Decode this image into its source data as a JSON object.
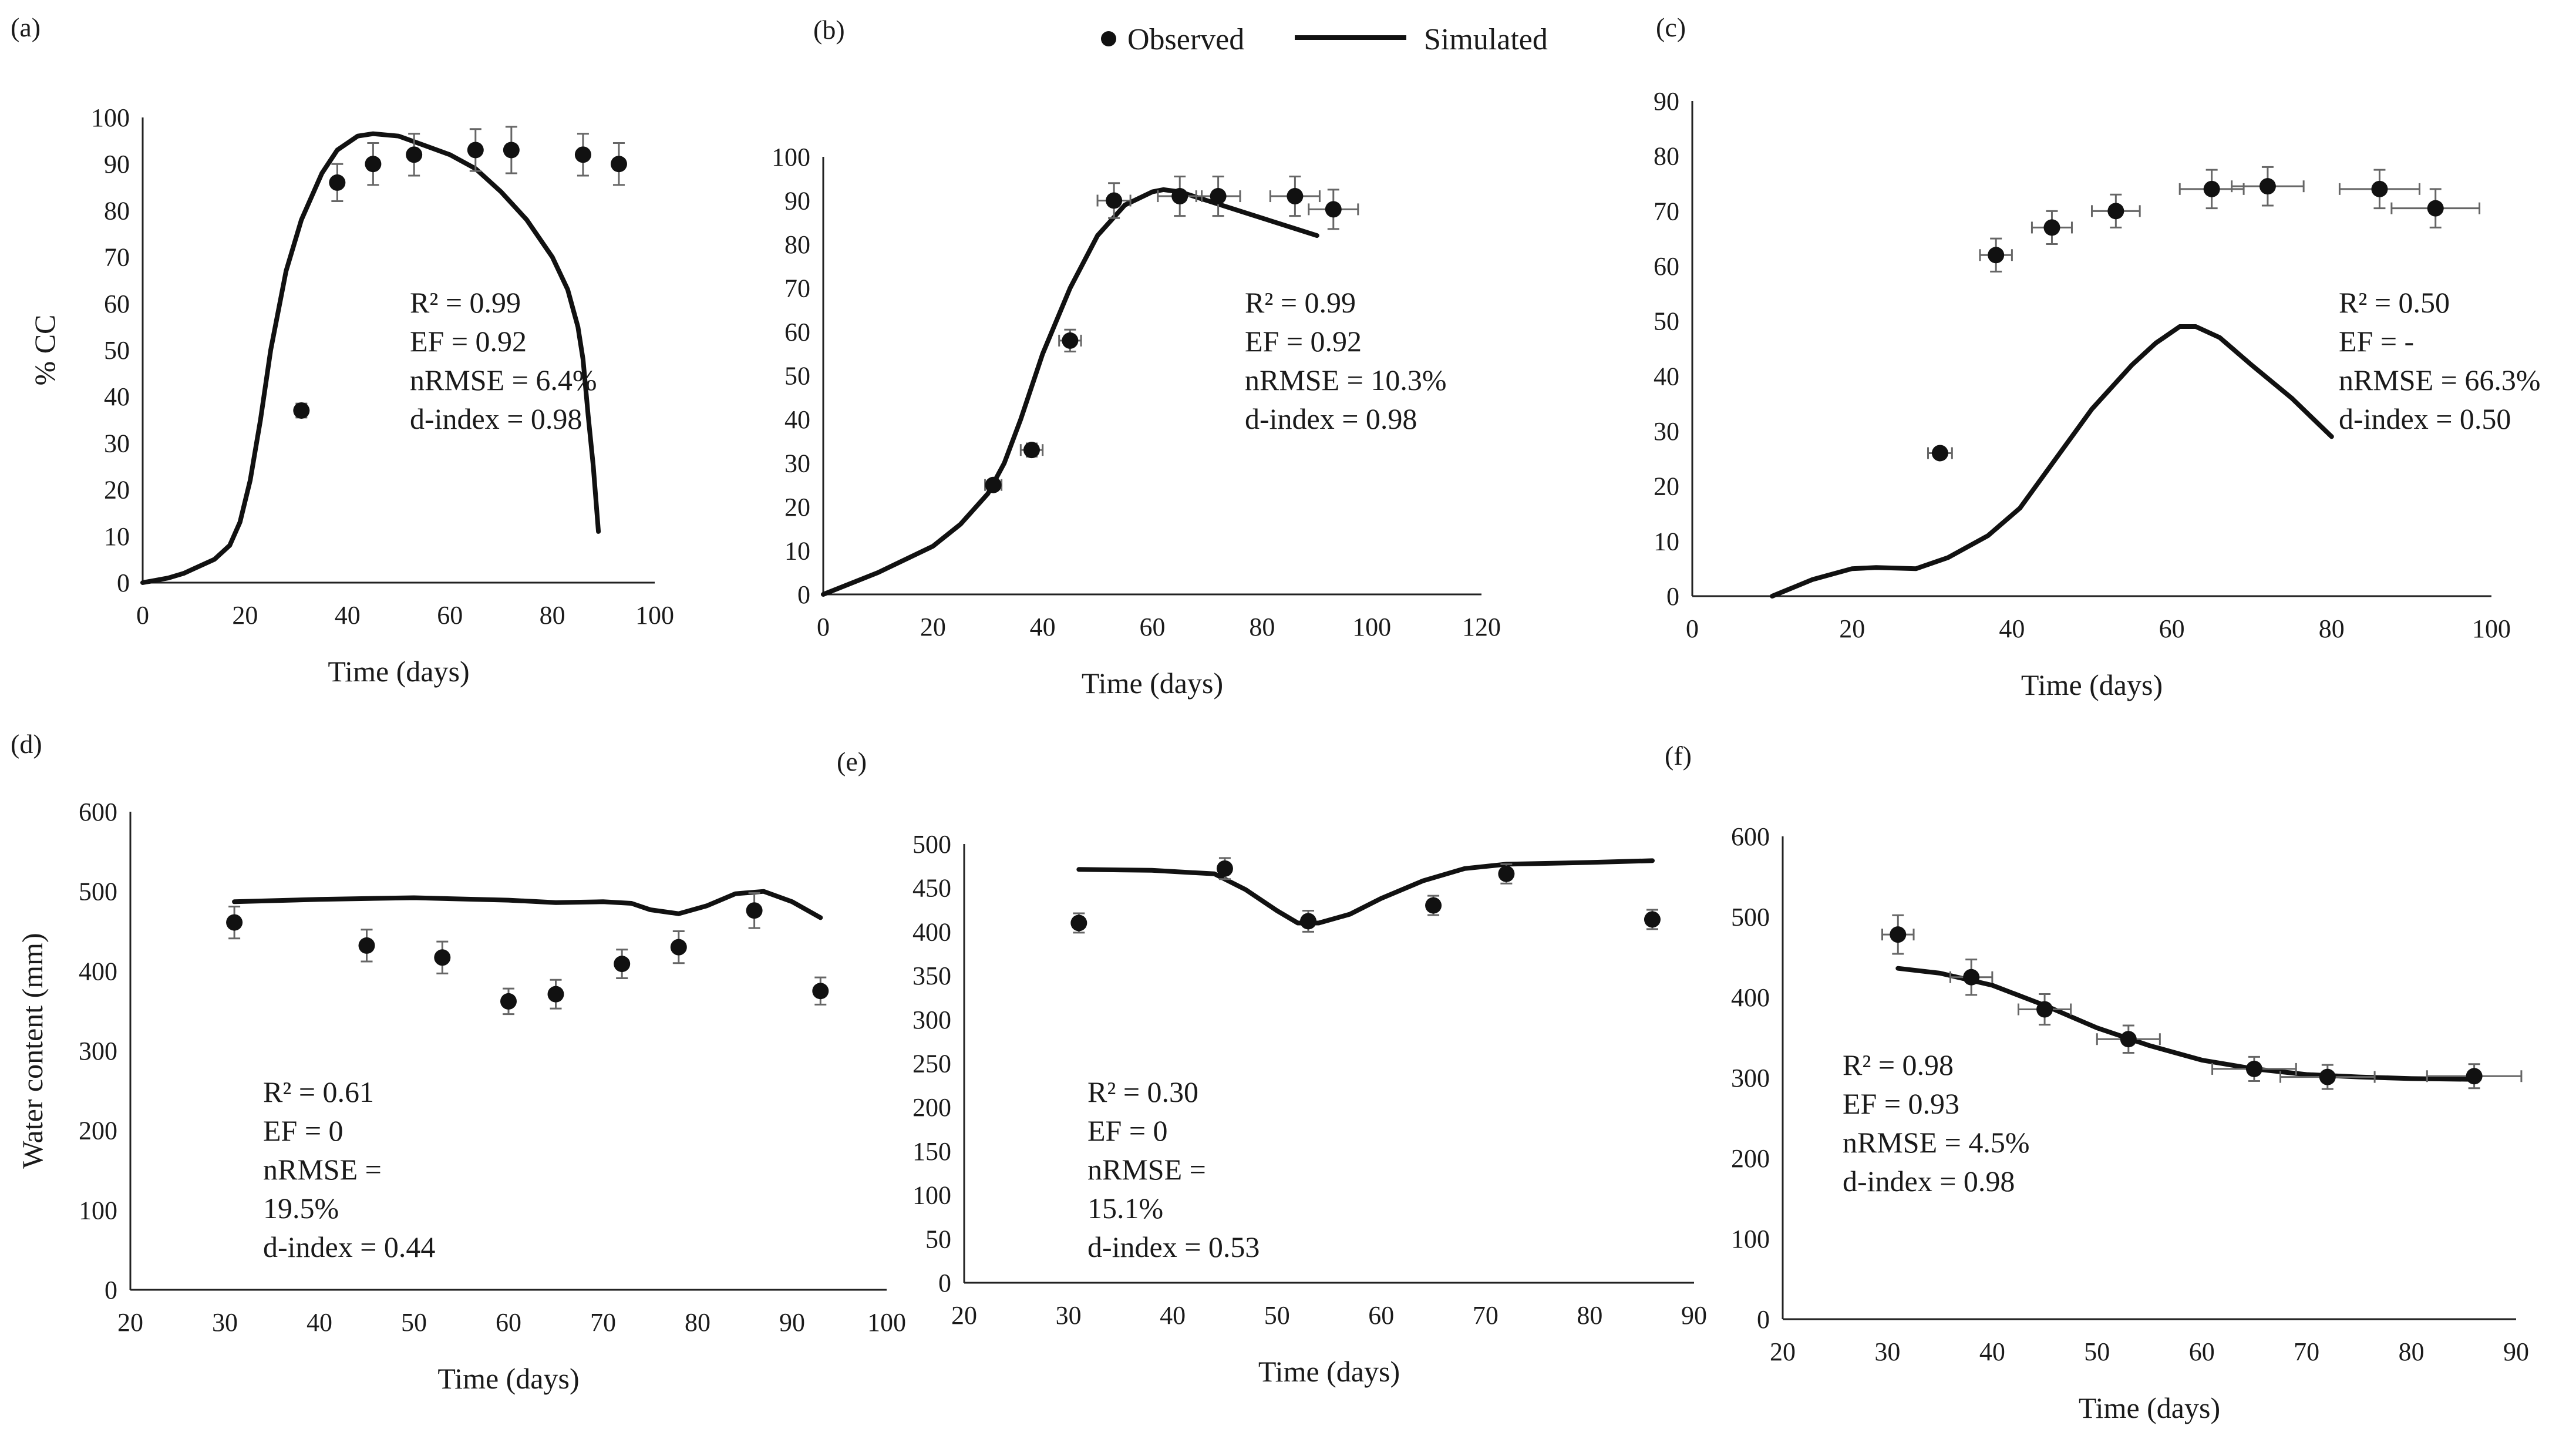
{
  "legend": {
    "observed_label": "Observed",
    "simulated_label": "Simulated"
  },
  "chart_data": [
    {
      "panel": "(a)",
      "type": "line",
      "xlabel": "Time (days)",
      "ylabel": "% CC",
      "xlim": [
        0,
        100
      ],
      "ylim": [
        0,
        100
      ],
      "xticks": [
        0,
        20,
        40,
        60,
        80,
        100
      ],
      "yticks": [
        0,
        10,
        20,
        30,
        40,
        50,
        60,
        70,
        80,
        90,
        100
      ],
      "stats": [
        "R² = 0.99",
        "EF = 0.92",
        "nRMSE = 6.4%",
        "d-index = 0.98"
      ],
      "observed": {
        "x": [
          31,
          38,
          45,
          53,
          65,
          72,
          86,
          93
        ],
        "y": [
          37,
          86,
          90,
          92,
          93,
          93,
          92,
          90
        ],
        "yerr": [
          1.5,
          4,
          4.5,
          4.5,
          4.5,
          5,
          4.5,
          4.5
        ]
      },
      "simulated": {
        "x": [
          0,
          5,
          8,
          10,
          14,
          17,
          19,
          21,
          23,
          25,
          28,
          31,
          35,
          38,
          42,
          45,
          50,
          55,
          60,
          65,
          70,
          75,
          80,
          83,
          85,
          86,
          86.5,
          87,
          88,
          89
        ],
        "y": [
          0,
          1,
          2,
          3,
          5,
          8,
          13,
          22,
          35,
          50,
          67,
          78,
          88,
          93,
          96,
          96.5,
          96,
          94,
          92,
          89,
          84,
          78,
          70,
          63,
          55,
          48,
          42,
          36,
          25,
          11
        ]
      }
    },
    {
      "panel": "(b)",
      "type": "line",
      "xlabel": "Time (days)",
      "ylabel": "",
      "xlim": [
        0,
        120
      ],
      "ylim": [
        0,
        100
      ],
      "xticks": [
        0,
        20,
        40,
        60,
        80,
        100,
        120
      ],
      "yticks": [
        0,
        10,
        20,
        30,
        40,
        50,
        60,
        70,
        80,
        90,
        100
      ],
      "stats": [
        "R² = 0.99",
        "EF = 0.92",
        "nRMSE = 10.3%",
        "d-index = 0.98"
      ],
      "observed": {
        "x": [
          31,
          38,
          45,
          53,
          65,
          72,
          86,
          93
        ],
        "y": [
          25,
          33,
          58,
          90,
          91,
          91,
          91,
          88
        ],
        "yerr": [
          1,
          1.5,
          2.5,
          4,
          4.5,
          4.5,
          4.5,
          4.5
        ],
        "xerr": [
          1.5,
          2,
          2,
          3,
          4,
          4,
          4.5,
          4.5
        ]
      },
      "simulated": {
        "x": [
          0,
          10,
          20,
          25,
          30,
          33,
          36,
          40,
          45,
          50,
          55,
          60,
          62,
          65,
          70,
          75,
          80,
          85,
          90
        ],
        "y": [
          0,
          5,
          11,
          16,
          23,
          30,
          40,
          55,
          70,
          82,
          89,
          92,
          92.5,
          92,
          90,
          88,
          86,
          84,
          82
        ]
      }
    },
    {
      "panel": "(c)",
      "type": "line",
      "xlabel": "Time (days)",
      "ylabel": "",
      "xlim": [
        0,
        100
      ],
      "ylim": [
        0,
        90
      ],
      "xticks": [
        0,
        20,
        40,
        60,
        80,
        100
      ],
      "yticks": [
        0,
        10,
        20,
        30,
        40,
        50,
        60,
        70,
        80,
        90
      ],
      "stats": [
        "R² = 0.50",
        "EF = -",
        "nRMSE = 66.3%",
        "d-index = 0.50"
      ],
      "observed": {
        "x": [
          31,
          38,
          45,
          53,
          65,
          72,
          86,
          93
        ],
        "y": [
          26,
          62,
          67,
          70,
          74,
          74.5,
          74,
          70.5
        ],
        "yerr": [
          0.8,
          3,
          3,
          3,
          3.5,
          3.5,
          3.5,
          3.5
        ],
        "xerr": [
          1.5,
          2,
          2.5,
          3,
          4,
          4.5,
          5,
          5.5
        ]
      },
      "simulated": {
        "x": [
          10,
          15,
          20,
          23,
          28,
          32,
          37,
          41,
          45,
          50,
          55,
          58,
          61,
          63,
          66,
          70,
          75,
          80
        ],
        "y": [
          0,
          3,
          5,
          5.2,
          5,
          7,
          11,
          16,
          24,
          34,
          42,
          46,
          49,
          49,
          47,
          42,
          36,
          29
        ]
      }
    },
    {
      "panel": "(d)",
      "type": "line",
      "xlabel": "Time (days)",
      "ylabel": "Water content (mm)",
      "xlim": [
        20,
        100
      ],
      "ylim": [
        0,
        600
      ],
      "xticks": [
        20,
        30,
        40,
        50,
        60,
        70,
        80,
        90,
        100
      ],
      "yticks": [
        0,
        100,
        200,
        300,
        400,
        500,
        600
      ],
      "stats": [
        "R² = 0.61",
        "EF = 0",
        "nRMSE =",
        "19.5%",
        "d-index = 0.44"
      ],
      "observed": {
        "x": [
          31,
          45,
          53,
          60,
          65,
          72,
          78,
          86,
          93
        ],
        "y": [
          461,
          432,
          417,
          362,
          371,
          409,
          430,
          476,
          375
        ],
        "yerr": [
          20,
          20,
          20,
          16,
          18,
          18,
          20,
          22,
          17
        ]
      },
      "simulated": {
        "x": [
          31,
          40,
          50,
          60,
          65,
          70,
          73,
          75,
          78,
          81,
          84,
          87,
          90,
          93
        ],
        "y": [
          487,
          490,
          492,
          489,
          486,
          487,
          485,
          477,
          472,
          482,
          497,
          500,
          487,
          467
        ]
      }
    },
    {
      "panel": "(e)",
      "type": "line",
      "xlabel": "Time (days)",
      "ylabel": "",
      "xlim": [
        20,
        90
      ],
      "ylim": [
        0,
        500
      ],
      "xticks": [
        20,
        30,
        40,
        50,
        60,
        70,
        80,
        90
      ],
      "yticks": [
        0,
        50,
        100,
        150,
        200,
        250,
        300,
        350,
        400,
        450,
        500
      ],
      "stats": [
        "R² = 0.30",
        "EF = 0",
        "nRMSE =",
        "15.1%",
        "d-index = 0.53"
      ],
      "observed": {
        "x": [
          31,
          45,
          53,
          65,
          72,
          86
        ],
        "y": [
          410,
          472,
          412,
          430,
          466,
          414
        ],
        "yerr": [
          11,
          12,
          12,
          11,
          11,
          11
        ]
      },
      "simulated": {
        "x": [
          31,
          38,
          44,
          47,
          50,
          52,
          54,
          57,
          60,
          64,
          68,
          72,
          80,
          86
        ],
        "y": [
          471,
          470,
          466,
          448,
          424,
          410,
          410,
          420,
          438,
          458,
          472,
          477,
          479,
          481
        ]
      }
    },
    {
      "panel": "(f)",
      "type": "line",
      "xlabel": "Time (days)",
      "ylabel": "",
      "xlim": [
        20,
        90
      ],
      "ylim": [
        0,
        600
      ],
      "xticks": [
        20,
        30,
        40,
        50,
        60,
        70,
        80,
        90
      ],
      "yticks": [
        0,
        100,
        200,
        300,
        400,
        500,
        600
      ],
      "stats": [
        "R² = 0.98",
        "EF = 0.93",
        "nRMSE = 4.5%",
        "d-index = 0.98"
      ],
      "observed": {
        "x": [
          31,
          38,
          45,
          53,
          65,
          72,
          86
        ],
        "y": [
          478,
          425,
          385,
          348,
          311,
          301,
          302
        ],
        "yerr": [
          24,
          22,
          19,
          17,
          15,
          15,
          15
        ],
        "xerr": [
          1.5,
          2,
          2.5,
          3,
          4,
          4.5,
          4.5
        ]
      },
      "simulated": {
        "x": [
          31,
          35,
          40,
          45,
          50,
          55,
          60,
          65,
          70,
          75,
          80,
          86
        ],
        "y": [
          436,
          430,
          415,
          390,
          362,
          340,
          322,
          311,
          304,
          301,
          299,
          298
        ]
      }
    }
  ]
}
